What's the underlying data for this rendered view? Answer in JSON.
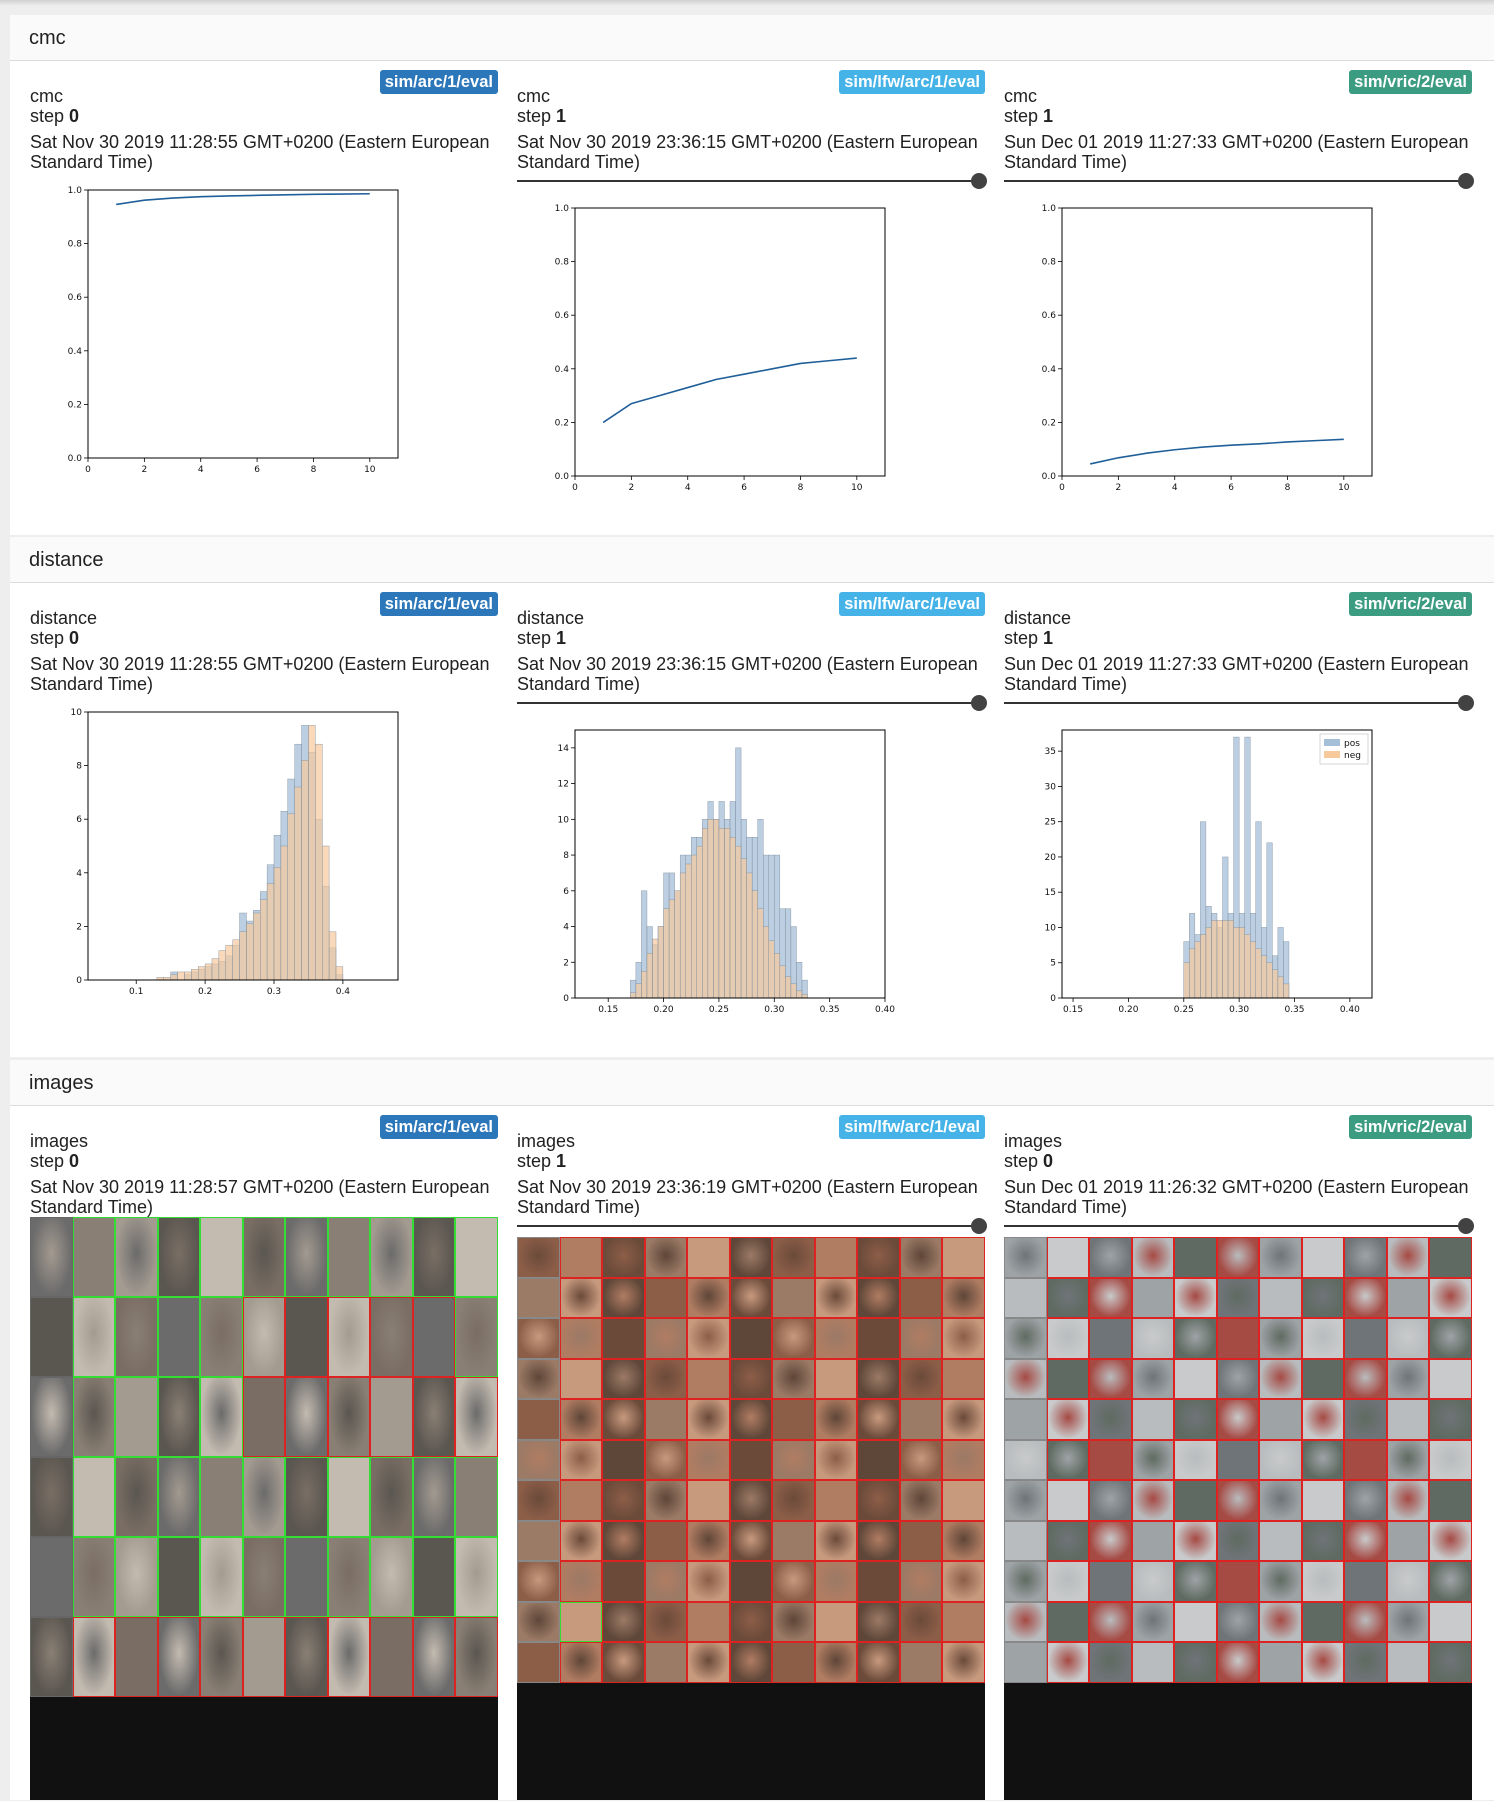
{
  "colors": {
    "run_arc": "#2b77b9",
    "run_lfw": "#45b3e7",
    "run_vric": "#3c9c81",
    "series_line": "#1f5f9a",
    "hist_pos": "#a5bfd8",
    "hist_neg": "#f7c99c",
    "match_border": "#33dd33",
    "nonmatch_border": "#dd2222"
  },
  "sections": [
    {
      "title": "cmc",
      "cards": [
        {
          "run": "sim/arc/1/eval",
          "name": "cmc",
          "step_label": "step",
          "step": "0",
          "timestamp": "Sat Nov 30 2019 11:28:55 GMT+0200 (Eastern European Standard Time)",
          "has_slider": false
        },
        {
          "run": "sim/lfw/arc/1/eval",
          "name": "cmc",
          "step_label": "step",
          "step": "1",
          "timestamp": "Sat Nov 30 2019 23:36:15 GMT+0200 (Eastern European Standard Time)",
          "has_slider": true
        },
        {
          "run": "sim/vric/2/eval",
          "name": "cmc",
          "step_label": "step",
          "step": "1",
          "timestamp": "Sun Dec 01 2019 11:27:33 GMT+0200 (Eastern European Standard Time)",
          "has_slider": true
        }
      ]
    },
    {
      "title": "distance",
      "cards": [
        {
          "run": "sim/arc/1/eval",
          "name": "distance",
          "step_label": "step",
          "step": "0",
          "timestamp": "Sat Nov 30 2019 11:28:55 GMT+0200 (Eastern European Standard Time)",
          "has_slider": false
        },
        {
          "run": "sim/lfw/arc/1/eval",
          "name": "distance",
          "step_label": "step",
          "step": "1",
          "timestamp": "Sat Nov 30 2019 23:36:15 GMT+0200 (Eastern European Standard Time)",
          "has_slider": true
        },
        {
          "run": "sim/vric/2/eval",
          "name": "distance",
          "step_label": "step",
          "step": "1",
          "timestamp": "Sun Dec 01 2019 11:27:33 GMT+0200 (Eastern European Standard Time)",
          "has_slider": true
        }
      ]
    },
    {
      "title": "images",
      "cards": [
        {
          "run": "sim/arc/1/eval",
          "name": "images",
          "step_label": "step",
          "step": "0",
          "timestamp": "Sat Nov 30 2019 11:28:57 GMT+0200 (Eastern European Standard Time)",
          "has_slider": false
        },
        {
          "run": "sim/lfw/arc/1/eval",
          "name": "images",
          "step_label": "step",
          "step": "1",
          "timestamp": "Sat Nov 30 2019 23:36:19 GMT+0200 (Eastern European Standard Time)",
          "has_slider": true
        },
        {
          "run": "sim/vric/2/eval",
          "name": "images",
          "step_label": "step",
          "step": "0",
          "timestamp": "Sun Dec 01 2019 11:26:32 GMT+0200 (Eastern European Standard Time)",
          "has_slider": true
        }
      ]
    }
  ],
  "image_grids": [
    {
      "subject": "pedestrians",
      "columns": 11,
      "visible_rows": 6,
      "thumb_colors": [
        "#6b6b6b",
        "#8a7f74",
        "#a39a90",
        "#5a5650",
        "#c4bbb0",
        "#7a6e64"
      ],
      "row_matches": [
        [
          true,
          true,
          true,
          true,
          true,
          true,
          true,
          true,
          true,
          true,
          true
        ],
        [
          false,
          true,
          true,
          true,
          true,
          false,
          false,
          false,
          false,
          false,
          true
        ],
        [
          false,
          true,
          true,
          true,
          true,
          false,
          false,
          false,
          false,
          false,
          false
        ],
        [
          false,
          true,
          true,
          true,
          true,
          true,
          true,
          true,
          true,
          true,
          true
        ],
        [
          false,
          true,
          true,
          true,
          true,
          true,
          true,
          true,
          true,
          true,
          true
        ],
        [
          false,
          false,
          false,
          false,
          false,
          false,
          false,
          false,
          false,
          false,
          false
        ]
      ]
    },
    {
      "subject": "faces",
      "columns": 11,
      "visible_rows": 11,
      "thumb_colors": [
        "#8c5e48",
        "#b07c62",
        "#6b4a3a",
        "#9b7a66",
        "#c79a7e",
        "#5e4638"
      ],
      "row_matches": [
        [
          true,
          false,
          false,
          false,
          false,
          false,
          false,
          false,
          false,
          false,
          false
        ],
        [
          false,
          false,
          false,
          false,
          false,
          false,
          false,
          false,
          false,
          false,
          false
        ],
        [
          false,
          false,
          false,
          false,
          false,
          false,
          false,
          false,
          false,
          false,
          false
        ],
        [
          false,
          false,
          false,
          false,
          false,
          false,
          false,
          false,
          false,
          false,
          false
        ],
        [
          false,
          false,
          false,
          false,
          false,
          false,
          false,
          false,
          false,
          false,
          false
        ],
        [
          false,
          false,
          false,
          false,
          false,
          false,
          false,
          false,
          false,
          false,
          false
        ],
        [
          false,
          false,
          false,
          false,
          false,
          false,
          false,
          false,
          false,
          false,
          false
        ],
        [
          false,
          false,
          false,
          false,
          false,
          false,
          false,
          false,
          false,
          false,
          false
        ],
        [
          false,
          false,
          false,
          false,
          false,
          false,
          false,
          false,
          false,
          false,
          false
        ],
        [
          false,
          true,
          false,
          false,
          false,
          false,
          false,
          false,
          false,
          false,
          false
        ],
        [
          false,
          false,
          false,
          false,
          false,
          false,
          false,
          false,
          false,
          false,
          false
        ]
      ]
    },
    {
      "subject": "vehicles",
      "columns": 11,
      "visible_rows": 11,
      "thumb_colors": [
        "#9ea3a6",
        "#c8cacb",
        "#6f7478",
        "#b9bcbe",
        "#5f6b62",
        "#a64a44"
      ],
      "row_matches": [
        [
          false,
          false,
          false,
          false,
          false,
          false,
          false,
          false,
          false,
          false,
          false
        ],
        [
          false,
          false,
          false,
          false,
          false,
          false,
          false,
          false,
          false,
          false,
          false
        ],
        [
          false,
          false,
          false,
          false,
          false,
          false,
          false,
          false,
          false,
          false,
          false
        ],
        [
          false,
          false,
          false,
          false,
          false,
          false,
          false,
          false,
          false,
          false,
          false
        ],
        [
          false,
          false,
          false,
          false,
          false,
          false,
          false,
          false,
          false,
          false,
          false
        ],
        [
          false,
          false,
          false,
          false,
          false,
          false,
          false,
          false,
          false,
          false,
          false
        ],
        [
          false,
          false,
          false,
          false,
          false,
          false,
          false,
          false,
          false,
          false,
          false
        ],
        [
          false,
          false,
          false,
          false,
          false,
          false,
          false,
          false,
          false,
          false,
          false
        ],
        [
          false,
          false,
          false,
          false,
          false,
          false,
          false,
          false,
          false,
          false,
          false
        ],
        [
          false,
          false,
          false,
          false,
          false,
          false,
          false,
          false,
          false,
          false,
          false
        ],
        [
          false,
          false,
          false,
          false,
          false,
          false,
          false,
          false,
          false,
          false,
          false
        ]
      ]
    }
  ],
  "chart_data": [
    {
      "type": "line",
      "title": "",
      "xlabel": "",
      "ylabel": "",
      "x": [
        1,
        2,
        3,
        4,
        5,
        6,
        7,
        8,
        9,
        10
      ],
      "y": [
        0.946,
        0.962,
        0.97,
        0.975,
        0.978,
        0.98,
        0.982,
        0.984,
        0.985,
        0.986
      ],
      "xlim": [
        0,
        11
      ],
      "ylim": [
        0,
        1.0
      ],
      "xticks": [
        "0",
        "2",
        "4",
        "6",
        "8",
        "10"
      ],
      "yticks": [
        "0.0",
        "0.2",
        "0.4",
        "0.6",
        "0.8",
        "1.0"
      ],
      "grid": false
    },
    {
      "type": "line",
      "title": "",
      "xlabel": "",
      "ylabel": "",
      "x": [
        1,
        2,
        3,
        4,
        5,
        6,
        7,
        8,
        9,
        10
      ],
      "y": [
        0.2,
        0.27,
        0.3,
        0.33,
        0.36,
        0.38,
        0.4,
        0.42,
        0.43,
        0.44
      ],
      "xlim": [
        0,
        11
      ],
      "ylim": [
        0,
        1.0
      ],
      "xticks": [
        "0",
        "2",
        "4",
        "6",
        "8",
        "10"
      ],
      "yticks": [
        "0.0",
        "0.2",
        "0.4",
        "0.6",
        "0.8",
        "1.0"
      ],
      "grid": false
    },
    {
      "type": "line",
      "title": "",
      "xlabel": "",
      "ylabel": "",
      "x": [
        1,
        2,
        3,
        4,
        5,
        6,
        7,
        8,
        9,
        10
      ],
      "y": [
        0.045,
        0.068,
        0.085,
        0.098,
        0.108,
        0.115,
        0.12,
        0.127,
        0.132,
        0.137
      ],
      "xlim": [
        0,
        11
      ],
      "ylim": [
        0,
        1.0
      ],
      "xticks": [
        "0",
        "2",
        "4",
        "6",
        "8",
        "10"
      ],
      "yticks": [
        "0.0",
        "0.2",
        "0.4",
        "0.6",
        "0.8",
        "1.0"
      ],
      "grid": false
    },
    {
      "type": "histogram",
      "title": "",
      "xlabel": "",
      "ylabel": "",
      "bin_start": 0.04,
      "bin_width": 0.01,
      "series": [
        {
          "values": [
            0,
            0,
            0,
            0,
            0,
            0,
            0,
            0,
            0,
            0,
            0,
            0.3,
            0,
            0.2,
            0.3,
            0.4,
            0.5,
            0.6,
            0.7,
            0.9,
            1.3,
            2.5,
            2.2,
            2.6,
            3.3,
            4.3,
            5.4,
            6.3,
            7.5,
            8.8,
            9.5,
            8.5,
            6.0,
            3.5,
            1.2,
            0.2
          ]
        },
        {
          "values": [
            0,
            0,
            0,
            0,
            0,
            0,
            0,
            0,
            0,
            0.1,
            0.1,
            0.2,
            0.3,
            0.3,
            0.4,
            0.5,
            0.6,
            0.8,
            1.1,
            1.3,
            1.5,
            1.8,
            2.1,
            2.5,
            3.0,
            3.6,
            4.2,
            5.0,
            6.2,
            7.2,
            8.2,
            9.5,
            8.8,
            5.0,
            1.8,
            0.5
          ]
        }
      ],
      "xlim": [
        0.03,
        0.48
      ],
      "ylim": [
        0,
        10
      ],
      "xticks": [
        "0.1",
        "0.2",
        "0.3",
        "0.4"
      ],
      "yticks": [
        "0",
        "2",
        "4",
        "6",
        "8",
        "10"
      ]
    },
    {
      "type": "histogram",
      "title": "",
      "xlabel": "",
      "ylabel": "",
      "bin_start": 0.17,
      "bin_width": 0.005,
      "series": [
        {
          "values": [
            1,
            2,
            6,
            4,
            3,
            4,
            7,
            7,
            6,
            8,
            8,
            9,
            9,
            10,
            11,
            10,
            11,
            10,
            11,
            14,
            10,
            9,
            9,
            10,
            8,
            8,
            8,
            5,
            5,
            4,
            2,
            1
          ]
        },
        {
          "values": [
            0.3,
            0.8,
            1.5,
            2.5,
            3.3,
            4,
            5,
            5.5,
            6,
            7,
            7.5,
            8,
            8.5,
            9.5,
            10,
            10,
            9.5,
            9.5,
            9,
            8.5,
            7.8,
            7,
            6,
            5,
            4,
            3.2,
            2.5,
            1.8,
            1.2,
            0.8,
            0.4,
            0.2
          ]
        }
      ],
      "xlim": [
        0.12,
        0.4
      ],
      "ylim": [
        0,
        15
      ],
      "xticks": [
        "0.15",
        "0.20",
        "0.25",
        "0.30",
        "0.35",
        "0.40"
      ],
      "yticks": [
        "0",
        "2",
        "4",
        "6",
        "8",
        "10",
        "12",
        "14"
      ]
    },
    {
      "type": "histogram",
      "title": "",
      "xlabel": "",
      "ylabel": "",
      "bin_start": 0.25,
      "bin_width": 0.005,
      "series": [
        {
          "name": "pos",
          "values": [
            8,
            12,
            9,
            25,
            13,
            12,
            10,
            20,
            12,
            37,
            12,
            37,
            12,
            25,
            10,
            22,
            6,
            10,
            8
          ]
        },
        {
          "name": "neg",
          "values": [
            5,
            7,
            8,
            9,
            10,
            11,
            11,
            11,
            11,
            10,
            10,
            9,
            8,
            7,
            6,
            5,
            4,
            3,
            2
          ]
        }
      ],
      "xlim": [
        0.14,
        0.42
      ],
      "ylim": [
        0,
        38
      ],
      "xticks": [
        "0.15",
        "0.20",
        "0.25",
        "0.30",
        "0.35",
        "0.40"
      ],
      "yticks": [
        "0",
        "5",
        "10",
        "15",
        "20",
        "25",
        "30",
        "35"
      ],
      "legend": "top-right"
    }
  ]
}
